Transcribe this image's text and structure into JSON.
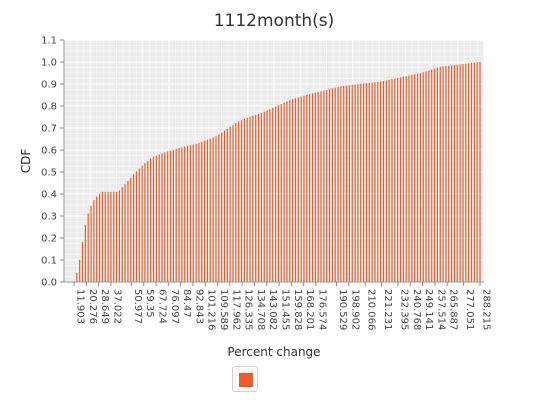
{
  "chart_data": {
    "type": "bar",
    "title": "1112month(s)",
    "xlabel": "Percent change",
    "ylabel": "CDF",
    "ylim": [
      0,
      1.1
    ],
    "yticks": [
      "0.0",
      "0.1",
      "0.2",
      "0.3",
      "0.4",
      "0.5",
      "0.6",
      "0.7",
      "0.8",
      "0.9",
      "1.0",
      "1.1"
    ],
    "grid": true,
    "legend": "bottom-center",
    "series": [
      {
        "color": "#f05a28"
      }
    ],
    "categories": [
      "11.903",
      "20.276",
      "28.649",
      "37.022",
      "50.977",
      "59.35",
      "67.724",
      "76.097",
      "84.47",
      "92.843",
      "101.216",
      "109.589",
      "117.962",
      "126.335",
      "134.708",
      "143.082",
      "151.455",
      "159.828",
      "168.201",
      "176.574",
      "190.529",
      "198.902",
      "210.066",
      "221.231",
      "232.395",
      "240.768",
      "249.141",
      "257.514",
      "265.887",
      "277.051",
      "288.215"
    ],
    "cdf_points": [
      {
        "x": 11.903,
        "y": 0.0
      },
      {
        "x": 13.0,
        "y": 0.02
      },
      {
        "x": 15.0,
        "y": 0.07
      },
      {
        "x": 17.0,
        "y": 0.15
      },
      {
        "x": 19.0,
        "y": 0.24
      },
      {
        "x": 21.0,
        "y": 0.3
      },
      {
        "x": 23.0,
        "y": 0.34
      },
      {
        "x": 26.0,
        "y": 0.38
      },
      {
        "x": 29.0,
        "y": 0.4
      },
      {
        "x": 31.0,
        "y": 0.41
      },
      {
        "x": 42.0,
        "y": 0.41
      },
      {
        "x": 46.0,
        "y": 0.44
      },
      {
        "x": 50.0,
        "y": 0.47
      },
      {
        "x": 54.0,
        "y": 0.5
      },
      {
        "x": 60.0,
        "y": 0.54
      },
      {
        "x": 66.0,
        "y": 0.57
      },
      {
        "x": 74.0,
        "y": 0.59
      },
      {
        "x": 84.0,
        "y": 0.61
      },
      {
        "x": 96.0,
        "y": 0.63
      },
      {
        "x": 108.0,
        "y": 0.66
      },
      {
        "x": 117.0,
        "y": 0.7
      },
      {
        "x": 124.0,
        "y": 0.73
      },
      {
        "x": 131.0,
        "y": 0.75
      },
      {
        "x": 140.0,
        "y": 0.77
      },
      {
        "x": 150.0,
        "y": 0.8
      },
      {
        "x": 160.0,
        "y": 0.83
      },
      {
        "x": 170.0,
        "y": 0.85
      },
      {
        "x": 182.0,
        "y": 0.87
      },
      {
        "x": 194.0,
        "y": 0.89
      },
      {
        "x": 206.0,
        "y": 0.9
      },
      {
        "x": 220.0,
        "y": 0.91
      },
      {
        "x": 234.0,
        "y": 0.93
      },
      {
        "x": 248.0,
        "y": 0.95
      },
      {
        "x": 262.0,
        "y": 0.98
      },
      {
        "x": 276.0,
        "y": 0.99
      },
      {
        "x": 288.215,
        "y": 1.0
      }
    ]
  }
}
